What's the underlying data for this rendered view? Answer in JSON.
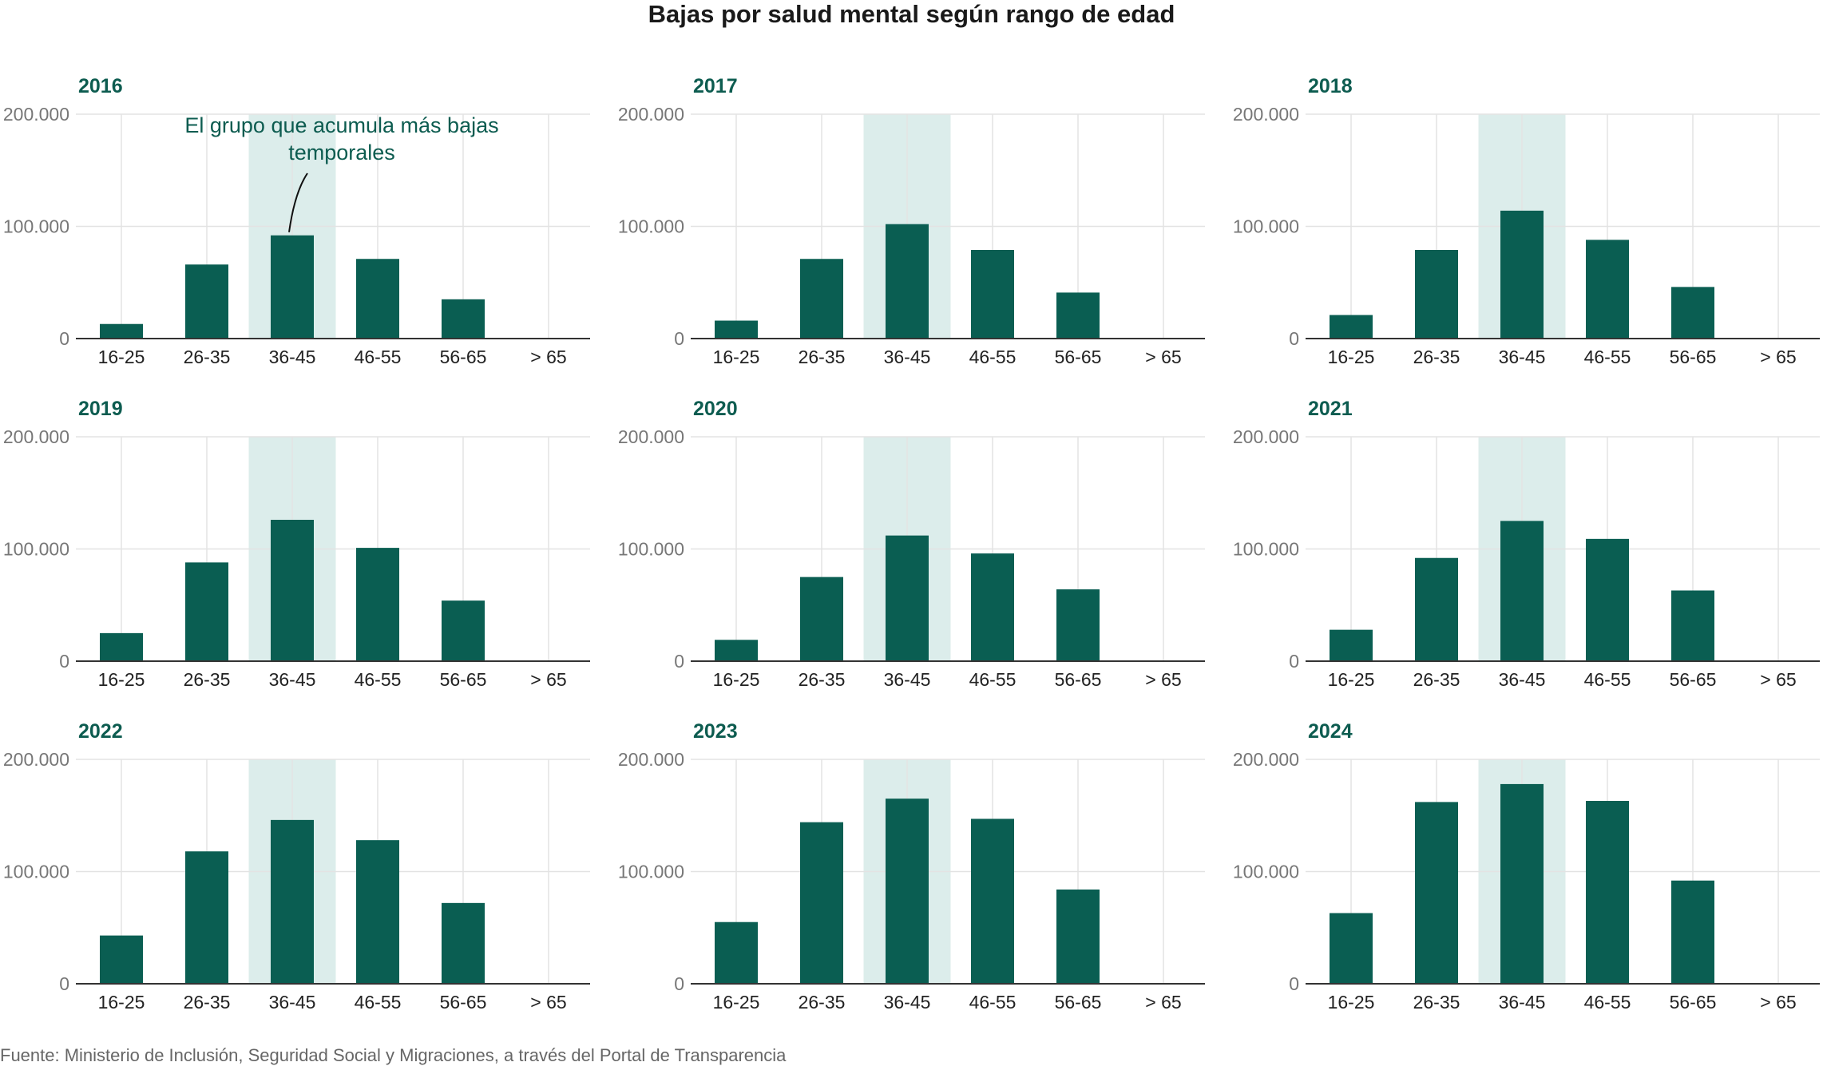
{
  "title": "Bajas por salud mental según rango de edad",
  "source": "Fuente: Ministerio de Inclusión, Seguridad Social y Migraciones, a través del Portal de Transparencia",
  "colors": {
    "bar": "#0a5e52",
    "highlight_band": "#dcedeb",
    "year_label": "#0d5c50",
    "grid": "#e3e3e3",
    "axis": "#333333",
    "annotation": "#0d5c50"
  },
  "annotation": {
    "lines": [
      "El grupo que acumula más bajas",
      "temporales"
    ],
    "panel_year": "2016",
    "target_category": "36-45"
  },
  "chart_data": {
    "type": "bar",
    "layout": "small-multiples",
    "title": "Bajas por salud mental según rango de edad",
    "categories": [
      "16-25",
      "26-35",
      "36-45",
      "46-55",
      "56-65",
      "> 65"
    ],
    "highlighted_category": "36-45",
    "y_ticks": [
      0,
      100000,
      200000
    ],
    "y_tick_labels": [
      "0",
      "100.000",
      "200.000"
    ],
    "ylim": [
      0,
      200000
    ],
    "xlabel": "",
    "ylabel": "",
    "grid": true,
    "panels": [
      {
        "year": "2016",
        "values": [
          13000,
          66000,
          92000,
          71000,
          35000,
          0
        ]
      },
      {
        "year": "2017",
        "values": [
          16000,
          71000,
          102000,
          79000,
          41000,
          0
        ]
      },
      {
        "year": "2018",
        "values": [
          21000,
          79000,
          114000,
          88000,
          46000,
          0
        ]
      },
      {
        "year": "2019",
        "values": [
          25000,
          88000,
          126000,
          101000,
          54000,
          0
        ]
      },
      {
        "year": "2020",
        "values": [
          19000,
          75000,
          112000,
          96000,
          64000,
          0
        ]
      },
      {
        "year": "2021",
        "values": [
          28000,
          92000,
          125000,
          109000,
          63000,
          0
        ]
      },
      {
        "year": "2022",
        "values": [
          43000,
          118000,
          146000,
          128000,
          72000,
          0
        ]
      },
      {
        "year": "2023",
        "values": [
          55000,
          144000,
          165000,
          147000,
          84000,
          0
        ]
      },
      {
        "year": "2024",
        "values": [
          63000,
          162000,
          178000,
          163000,
          92000,
          0
        ]
      }
    ]
  }
}
